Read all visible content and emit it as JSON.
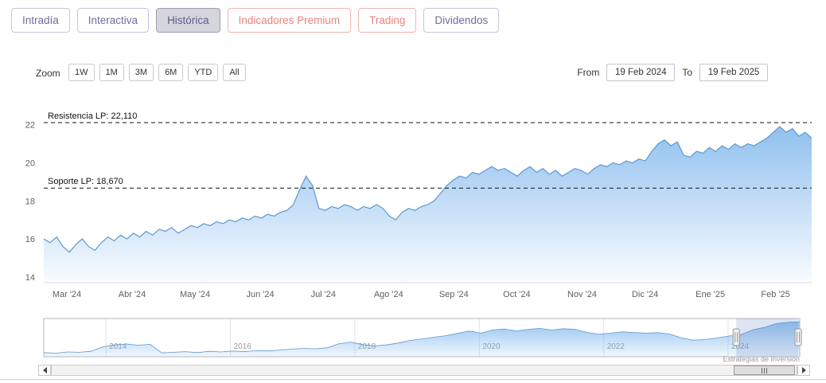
{
  "tabs": [
    {
      "label": "Intradía",
      "variant": "purple",
      "active": false
    },
    {
      "label": "Interactiva",
      "variant": "purple",
      "active": false
    },
    {
      "label": "Histórica",
      "variant": "purple",
      "active": true
    },
    {
      "label": "Indicadores Premium",
      "variant": "salmon",
      "active": false
    },
    {
      "label": "Trading",
      "variant": "salmon",
      "active": false
    },
    {
      "label": "Dividendos",
      "variant": "purple",
      "active": false
    }
  ],
  "toolbar": {
    "zoom_label": "Zoom",
    "zoom_buttons": [
      "1W",
      "1M",
      "3M",
      "6M",
      "YTD",
      "All"
    ],
    "from_label": "From",
    "from_value": "19 Feb 2024",
    "to_label": "To",
    "to_value": "19 Feb 2025"
  },
  "colors": {
    "line": "#5f98cf",
    "area_base": "#7cb5ec",
    "accent_purple": "#6d6d9e",
    "accent_salmon": "#e8837d",
    "plotline": "#111111"
  },
  "chart_data": {
    "type": "area",
    "title": "",
    "x_range": [
      "19 Feb 2024",
      "19 Feb 2025"
    ],
    "y_ticks": [
      14,
      16,
      18,
      20,
      22
    ],
    "ylim": [
      13.7,
      23.2
    ],
    "grid": false,
    "x_ticks": [
      {
        "label": "Mar '24",
        "f": 0.03
      },
      {
        "label": "Abr '24",
        "f": 0.115
      },
      {
        "label": "May '24",
        "f": 0.197
      },
      {
        "label": "Jun '24",
        "f": 0.282
      },
      {
        "label": "Jul '24",
        "f": 0.364
      },
      {
        "label": "Ago '24",
        "f": 0.449
      },
      {
        "label": "Sep '24",
        "f": 0.534
      },
      {
        "label": "Oct '24",
        "f": 0.616
      },
      {
        "label": "Nov '24",
        "f": 0.701
      },
      {
        "label": "Dic '24",
        "f": 0.783
      },
      {
        "label": "Ene '25",
        "f": 0.868
      },
      {
        "label": "Feb '25",
        "f": 0.953
      }
    ],
    "series": [
      {
        "name": "price",
        "values": [
          16.0,
          15.8,
          16.1,
          15.6,
          15.3,
          15.7,
          16.0,
          15.6,
          15.4,
          15.8,
          16.1,
          15.9,
          16.2,
          16.0,
          16.3,
          16.1,
          16.4,
          16.2,
          16.5,
          16.4,
          16.6,
          16.3,
          16.5,
          16.7,
          16.6,
          16.8,
          16.7,
          16.9,
          16.8,
          17.0,
          16.9,
          17.1,
          17.0,
          17.2,
          17.1,
          17.3,
          17.2,
          17.4,
          17.5,
          17.8,
          18.6,
          19.3,
          18.8,
          17.6,
          17.5,
          17.7,
          17.6,
          17.8,
          17.7,
          17.5,
          17.7,
          17.6,
          17.8,
          17.6,
          17.2,
          17.0,
          17.4,
          17.6,
          17.5,
          17.7,
          17.8,
          18.0,
          18.4,
          18.8,
          19.1,
          19.3,
          19.2,
          19.5,
          19.4,
          19.6,
          19.8,
          19.6,
          19.7,
          19.5,
          19.3,
          19.6,
          19.8,
          19.5,
          19.7,
          19.4,
          19.6,
          19.3,
          19.5,
          19.7,
          19.6,
          19.4,
          19.7,
          19.9,
          19.8,
          20.0,
          19.9,
          20.1,
          20.0,
          20.2,
          20.1,
          20.6,
          21.0,
          21.2,
          20.9,
          21.1,
          20.4,
          20.3,
          20.6,
          20.5,
          20.8,
          20.6,
          20.9,
          20.7,
          21.0,
          20.8,
          21.0,
          20.9,
          21.1,
          21.3,
          21.6,
          21.9,
          21.6,
          21.8,
          21.4,
          21.6,
          21.3
        ]
      }
    ],
    "plot_lines": [
      {
        "label": "Resistencia LP: 22,110",
        "value": 22.11
      },
      {
        "label": "Soporte LP: 18,670",
        "value": 18.67
      }
    ],
    "navigator": {
      "x_ticks": [
        {
          "label": "2014",
          "f": 0.0823
        },
        {
          "label": "2016",
          "f": 0.2469
        },
        {
          "label": "2018",
          "f": 0.4115
        },
        {
          "label": "2020",
          "f": 0.5761
        },
        {
          "label": "2022",
          "f": 0.7407
        },
        {
          "label": "2024",
          "f": 0.9053
        }
      ],
      "values": [
        11.8,
        11.6,
        12.0,
        11.9,
        12.2,
        13.6,
        14.2,
        14.5,
        14.1,
        14.4,
        11.7,
        11.9,
        12.1,
        11.8,
        12.2,
        12.0,
        12.3,
        12.1,
        12.4,
        12.3,
        12.6,
        12.9,
        13.1,
        13.0,
        13.3,
        14.6,
        15.1,
        14.3,
        13.9,
        14.2,
        14.8,
        15.6,
        16.1,
        16.6,
        17.1,
        17.8,
        18.6,
        17.9,
        18.9,
        19.2,
        18.6,
        19.1,
        19.4,
        18.9,
        19.3,
        19.1,
        18.1,
        17.6,
        17.9,
        18.3,
        18.1,
        17.9,
        18.1,
        17.6,
        16.4,
        15.7,
        15.9,
        16.4,
        17.0,
        17.4,
        18.9,
        19.7,
        20.9,
        21.3,
        21.5
      ],
      "selected": [
        0.916,
        0.998
      ]
    }
  },
  "credits": "Estrategias de Inversión"
}
